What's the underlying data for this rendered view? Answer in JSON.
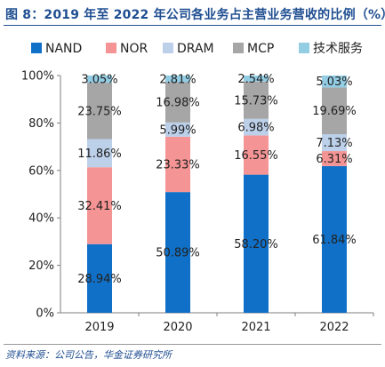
{
  "header": {
    "title": "图 8：2019 年至 2022 年公司各业务占主营业务营收的比例（%）"
  },
  "footer": {
    "source": "资料来源：公司公告，华金证券研究所"
  },
  "chart_data": {
    "type": "bar",
    "stacked": true,
    "categories": [
      "2019",
      "2020",
      "2021",
      "2022"
    ],
    "series": [
      {
        "name": "NAND",
        "color": "#1070c7",
        "values": [
          28.94,
          50.89,
          58.2,
          61.84
        ],
        "labels": [
          "28.94%",
          "50.89%",
          "58.20%",
          "61.84%"
        ]
      },
      {
        "name": "NOR",
        "color": "#f59494",
        "values": [
          32.41,
          23.33,
          16.55,
          6.31
        ],
        "labels": [
          "32.41%",
          "23.33%",
          "16.55%",
          "6.31%"
        ]
      },
      {
        "name": "DRAM",
        "color": "#bcd0ea",
        "values": [
          11.86,
          5.99,
          6.98,
          7.13
        ],
        "labels": [
          "11.86%",
          "5.99%",
          "6.98%",
          "7.13%"
        ]
      },
      {
        "name": "MCP",
        "color": "#a6a6a6",
        "values": [
          23.75,
          16.98,
          15.73,
          19.69
        ],
        "labels": [
          "23.75%",
          "16.98%",
          "15.73%",
          "19.69%"
        ]
      },
      {
        "name": "技术服务",
        "color": "#93cde4",
        "values": [
          3.05,
          2.81,
          2.54,
          5.03
        ],
        "labels": [
          "3.05%",
          "2.81%",
          "2.54%",
          "5.03%"
        ]
      }
    ],
    "yticks": [
      "0%",
      "20%",
      "40%",
      "60%",
      "80%",
      "100%"
    ],
    "ylim": [
      0,
      100
    ],
    "grid": false,
    "legend": "top"
  }
}
